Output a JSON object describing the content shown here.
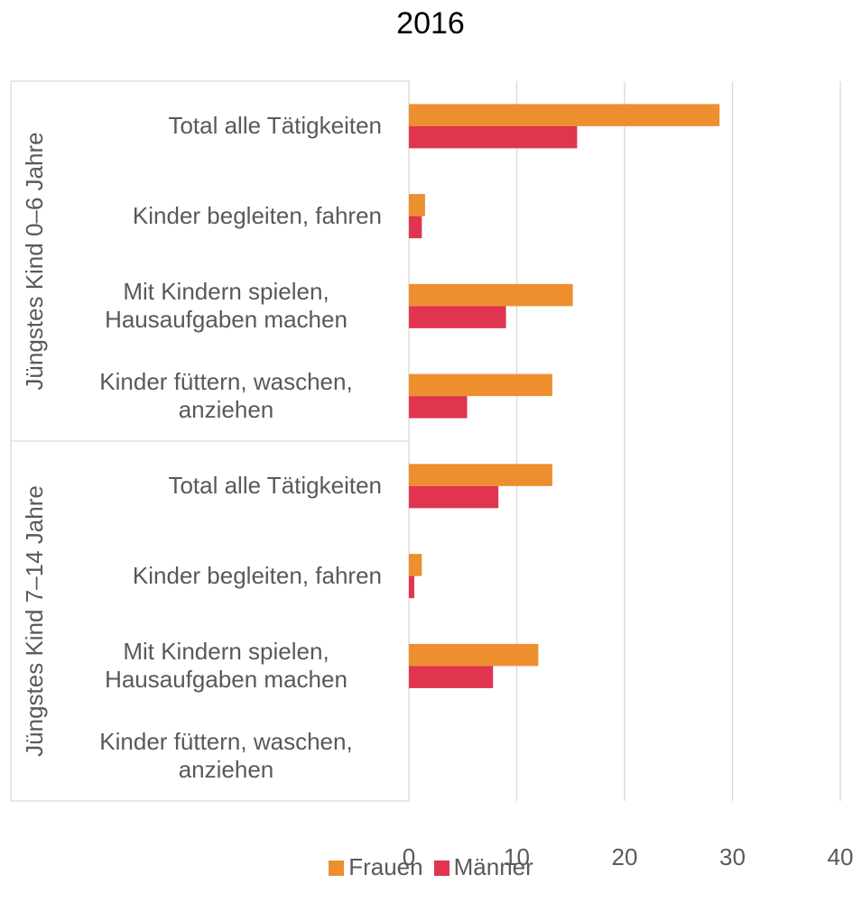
{
  "chart_data": {
    "type": "bar",
    "orientation": "horizontal",
    "title": "2016",
    "groups": [
      {
        "name": "Jüngstes Kind 0–6 Jahre",
        "categories": [
          "Total alle Tätigkeiten",
          "Kinder begleiten, fahren",
          "Mit Kindern spielen, Hausaufgaben machen",
          "Kinder füttern, waschen, anziehen"
        ]
      },
      {
        "name": "Jüngstes Kind 7–14 Jahre",
        "categories": [
          "Total alle Tätigkeiten",
          "Kinder begleiten, fahren",
          "Mit Kindern spielen, Hausaufgaben machen",
          "Kinder füttern, waschen, anziehen"
        ]
      }
    ],
    "series": [
      {
        "name": "Frauen",
        "color": "#ed8f2f",
        "values": [
          28.8,
          1.5,
          15.2,
          13.3,
          13.3,
          1.2,
          12.0,
          null
        ]
      },
      {
        "name": "Männer",
        "color": "#e0344f",
        "values": [
          15.6,
          1.2,
          9.0,
          5.4,
          8.3,
          0.5,
          7.8,
          null
        ]
      }
    ],
    "xlim": [
      0,
      40
    ],
    "xticks": [
      0,
      10,
      20,
      30,
      40
    ],
    "grid": true,
    "legend": "bottom"
  }
}
